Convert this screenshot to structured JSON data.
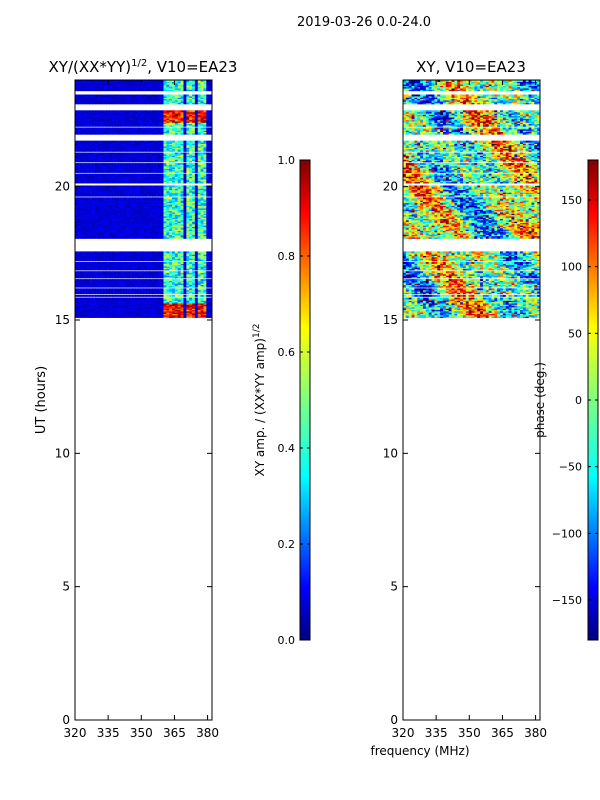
{
  "figure": {
    "suptitle": "2019-03-26 0.0-24.0",
    "shared_xlabel": "frequency (MHz)"
  },
  "chart_data": [
    {
      "type": "heatmap",
      "title": "XY/(XX*YY)",
      "title_power": "1/2",
      "title_suffix": ", V10=EA23",
      "xlabel": "",
      "ylabel": "UT (hours)",
      "xlim": [
        320,
        382
      ],
      "ylim": [
        0,
        24
      ],
      "xticks": [
        320,
        335,
        350,
        365,
        380
      ],
      "yticks": [
        0,
        5,
        10,
        15,
        20
      ],
      "data_range_hours": [
        15.1,
        24.0
      ],
      "bright_channel_groups_mhz": [
        [
          360,
          364
        ],
        [
          364,
          369
        ],
        [
          371,
          374
        ],
        [
          376,
          379
        ]
      ],
      "colorbar": {
        "label": "XY amp. / (XX*YY amp)",
        "label_power": "1/2",
        "range": [
          0.0,
          1.0
        ],
        "ticks": [
          "0.0",
          "0.2",
          "0.4",
          "0.6",
          "0.8",
          "1.0"
        ],
        "colormap": "jet"
      }
    },
    {
      "type": "heatmap",
      "title": "XY, V10=EA23",
      "xlabel": "frequency (MHz)",
      "ylabel": "",
      "xlim": [
        320,
        382
      ],
      "ylim": [
        0,
        24
      ],
      "xticks": [
        320,
        335,
        350,
        365,
        380
      ],
      "yticks": [
        0,
        5,
        10,
        15,
        20
      ],
      "data_range_hours": [
        15.1,
        24.0
      ],
      "colorbar": {
        "label": "phase (deg.)",
        "range": [
          -180,
          180
        ],
        "ticks": [
          "−150",
          "−100",
          "−50",
          "0",
          "50",
          "100",
          "150"
        ],
        "tick_values": [
          -150,
          -100,
          -50,
          0,
          50,
          100,
          150
        ],
        "colormap": "jet"
      }
    }
  ],
  "flagged_gaps_hours": [
    [
      23.45,
      23.6
    ],
    [
      22.85,
      23.1
    ],
    [
      22.2,
      22.25
    ],
    [
      21.75,
      21.95
    ],
    [
      21.3,
      21.35
    ],
    [
      20.9,
      20.95
    ],
    [
      20.5,
      20.55
    ],
    [
      20.05,
      20.12
    ],
    [
      19.6,
      19.63
    ],
    [
      19.25,
      19.27
    ],
    [
      18.65,
      18.68
    ],
    [
      18.4,
      18.42
    ],
    [
      17.55,
      18.05
    ],
    [
      17.2,
      17.23
    ],
    [
      16.85,
      16.88
    ],
    [
      16.55,
      16.57
    ],
    [
      16.2,
      16.25
    ],
    [
      15.95,
      16.0
    ],
    [
      15.85,
      15.88
    ]
  ],
  "colors": {
    "jet": [
      "#00007f",
      "#0000ff",
      "#007fff",
      "#00ffff",
      "#7fff7f",
      "#ffff00",
      "#ff7f00",
      "#ff0000",
      "#7f0000"
    ]
  }
}
